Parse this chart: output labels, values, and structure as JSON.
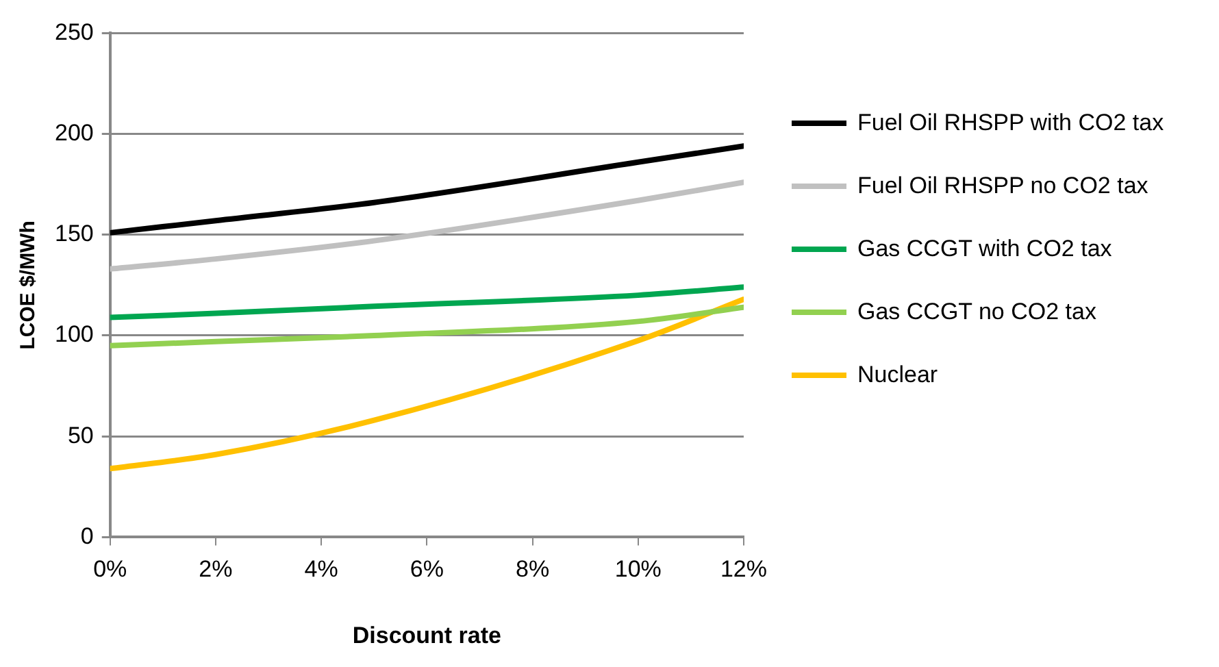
{
  "chart_data": {
    "type": "line",
    "xlabel": "Discount rate",
    "ylabel": "LCOE $/MWh",
    "x": [
      0,
      2,
      5,
      10,
      12
    ],
    "xlim": [
      0,
      12
    ],
    "xticks": [
      {
        "value": 0,
        "label": "0%"
      },
      {
        "value": 2,
        "label": "2%"
      },
      {
        "value": 4,
        "label": "4%"
      },
      {
        "value": 6,
        "label": "6%"
      },
      {
        "value": 8,
        "label": "8%"
      },
      {
        "value": 10,
        "label": "10%"
      },
      {
        "value": 12,
        "label": "12%"
      }
    ],
    "ylim": [
      0,
      250
    ],
    "yticks": [
      0,
      50,
      100,
      150,
      200,
      250
    ],
    "grid": "y",
    "legend": "right",
    "marker": "none",
    "line_style": "solid",
    "series": [
      {
        "name": "Fuel Oil RHSPP with CO2 tax",
        "color": "#000000",
        "values": [
          151,
          157,
          166,
          186,
          194
        ]
      },
      {
        "name": "Fuel Oil RHSPP no CO2 tax",
        "color": "#c0c0c0",
        "values": [
          133,
          138,
          147,
          167,
          176
        ]
      },
      {
        "name": "Gas CCGT with CO2 tax",
        "color": "#00a650",
        "values": [
          109,
          111,
          114.5,
          120,
          124
        ]
      },
      {
        "name": "Gas CCGT no CO2 tax",
        "color": "#92d050",
        "values": [
          95,
          97,
          100,
          107,
          114
        ]
      },
      {
        "name": "Nuclear",
        "color": "#ffc000",
        "values": [
          34,
          41,
          58,
          97.5,
          118
        ]
      }
    ]
  }
}
